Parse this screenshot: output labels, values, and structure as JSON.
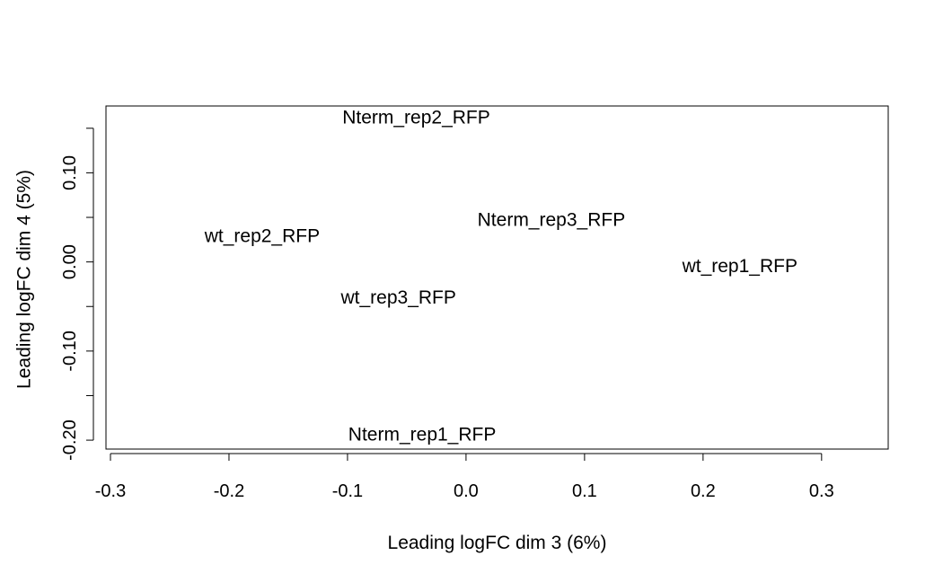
{
  "chart_data": {
    "type": "scatter",
    "title": "",
    "xlabel": "Leading logFC dim 3 (6%)",
    "ylabel": "Leading logFC dim 4 (5%)",
    "xlim": [
      -0.3,
      0.36
    ],
    "ylim": [
      -0.21,
      0.175
    ],
    "x_ticks": [
      -0.3,
      -0.2,
      -0.1,
      0.0,
      0.1,
      0.2,
      0.3
    ],
    "x_tick_labels": [
      "-0.3",
      "-0.2",
      "-0.1",
      "0.0",
      "0.1",
      "0.2",
      "0.3"
    ],
    "y_ticks": [
      -0.2,
      -0.15,
      -0.1,
      -0.05,
      0.0,
      0.05,
      0.1,
      0.15
    ],
    "y_tick_labels": [
      "-0.20",
      "",
      "-0.10",
      "",
      "0.00",
      "",
      "0.10",
      ""
    ],
    "grid": false,
    "legend": "none",
    "points": [
      {
        "label": "Nterm_rep2_RFP",
        "x": -0.042,
        "y": 0.162
      },
      {
        "label": "Nterm_rep3_RFP",
        "x": 0.072,
        "y": 0.047
      },
      {
        "label": "wt_rep2_RFP",
        "x": -0.172,
        "y": 0.029
      },
      {
        "label": "wt_rep1_RFP",
        "x": 0.231,
        "y": -0.005
      },
      {
        "label": "wt_rep3_RFP",
        "x": -0.057,
        "y": -0.04
      },
      {
        "label": "Nterm_rep1_RFP",
        "x": -0.037,
        "y": -0.194
      }
    ]
  }
}
